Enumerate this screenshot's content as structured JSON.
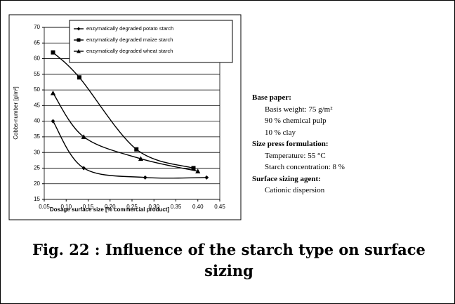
{
  "chart_data": {
    "type": "line",
    "y_label": "Cobbs-number [g/m²]",
    "x_label": "Dosage surface size [% commercial product]",
    "xlim": [
      0.05,
      0.45
    ],
    "xticks": [
      0.05,
      {
        "value": 0.1,
        "label": "0.10"
      },
      0.15,
      {
        "value": 0.2,
        "label": "0.20"
      },
      0.25,
      {
        "value": 0.3,
        "label": "0.30"
      },
      0.35,
      {
        "value": 0.4,
        "label": "0.40"
      },
      0.45
    ],
    "ylim": [
      15,
      70
    ],
    "yticks": [
      15,
      20,
      25,
      30,
      35,
      40,
      45,
      50,
      55,
      60,
      65,
      70
    ],
    "grid": true,
    "series": [
      {
        "name": "enzymatically degraded potato starch",
        "color": "#000000",
        "marker": "diamond",
        "x": [
          0.07,
          0.14,
          0.28,
          0.42
        ],
        "values": [
          40,
          25,
          22,
          22
        ]
      },
      {
        "name": "enzymatically degraded maize starch",
        "color": "#000000",
        "marker": "square",
        "x": [
          0.07,
          0.13,
          0.26,
          0.39
        ],
        "values": [
          62,
          54,
          31,
          25
        ]
      },
      {
        "name": "enzymatically degraded wheat starch",
        "color": "#000000",
        "marker": "triangle",
        "x": [
          0.07,
          0.14,
          0.27,
          0.4
        ],
        "values": [
          49,
          35,
          28,
          24
        ]
      }
    ]
  },
  "notes": [
    {
      "heading": "Base paper:",
      "items": [
        "Basis weight: 75 g/m²",
        "90 % chemical pulp",
        "10 % clay"
      ]
    },
    {
      "heading": "Size press formulation:",
      "items": [
        "Temperature: 55 °C",
        "Starch concentration: 8 %"
      ]
    },
    {
      "heading": "Surface sizing agent:",
      "items": [
        "Cationic dispersion"
      ]
    }
  ],
  "caption": "Fig. 22 : Influence of the starch type on surface sizing"
}
